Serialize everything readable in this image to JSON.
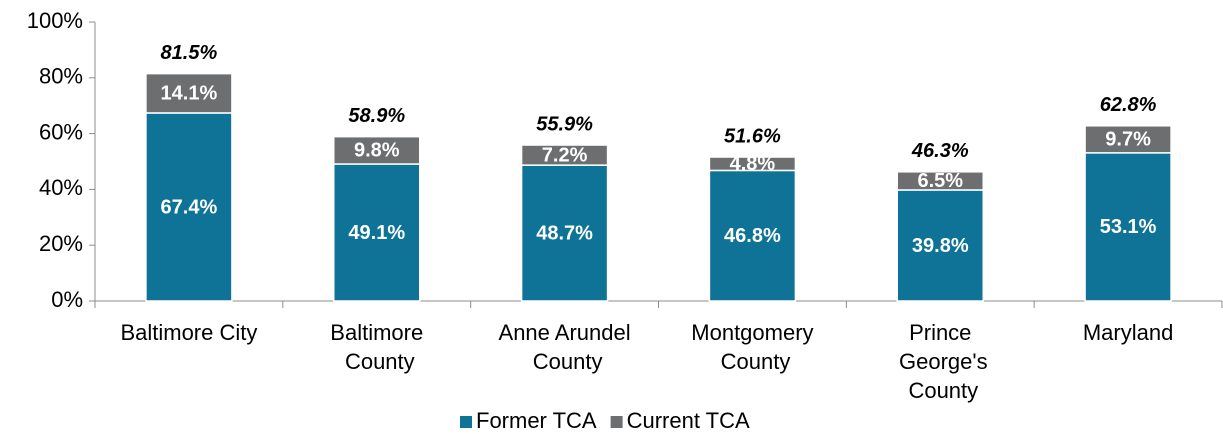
{
  "chart_data": {
    "type": "stacked_bar",
    "categories": [
      "Baltimore City",
      "Baltimore County",
      "Anne Arundel County",
      "Montgomery County",
      "Prince George's County",
      "Maryland"
    ],
    "series": [
      {
        "name": "Former TCA",
        "color": "#0e7396",
        "values": [
          67.4,
          49.1,
          48.7,
          46.8,
          39.8,
          53.1
        ],
        "value_labels": [
          "67.4%",
          "49.1%",
          "48.7%",
          "46.8%",
          "39.8%",
          "53.1%"
        ]
      },
      {
        "name": "Current TCA",
        "color": "#6d6e70",
        "values": [
          14.1,
          9.8,
          7.2,
          4.8,
          6.5,
          9.7
        ],
        "value_labels": [
          "14.1%",
          "9.8%",
          "7.2%",
          "4.8%",
          "6.5%",
          "9.7%"
        ]
      }
    ],
    "total_labels": [
      "81.5%",
      "58.9%",
      "55.9%",
      "51.6%",
      "46.3%",
      "62.8%"
    ],
    "ylim": [
      0,
      100
    ],
    "yticks": [
      {
        "value": 0,
        "label": "0%"
      },
      {
        "value": 20,
        "label": "20%"
      },
      {
        "value": 40,
        "label": "40%"
      },
      {
        "value": 60,
        "label": "60%"
      },
      {
        "value": 80,
        "label": "80%"
      },
      {
        "value": 100,
        "label": "100%"
      }
    ],
    "legend": "bottom"
  }
}
